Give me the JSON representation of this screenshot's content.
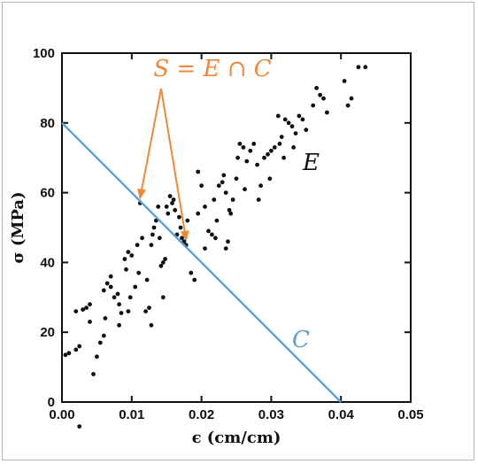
{
  "chart_data": {
    "type": "scatter",
    "xlabel": "ϵ (cm/cm)",
    "ylabel": "σ (MPa)",
    "xlim": [
      0,
      0.05
    ],
    "ylim": [
      0,
      100
    ],
    "xticks": [
      "0.00",
      "0.01",
      "0.02",
      "0.03",
      "0.04",
      "0.05"
    ],
    "yticks": [
      "0",
      "20",
      "40",
      "60",
      "80",
      "100"
    ],
    "grid": false,
    "points": [
      [
        0.0005,
        13.5
      ],
      [
        0.001,
        14
      ],
      [
        0.002,
        15
      ],
      [
        0.0025,
        16
      ],
      [
        0.002,
        26
      ],
      [
        0.003,
        26.5
      ],
      [
        0.0035,
        27
      ],
      [
        0.004,
        28
      ],
      [
        0.004,
        23
      ],
      [
        0.0045,
        8
      ],
      [
        0.005,
        13
      ],
      [
        0.0055,
        17
      ],
      [
        0.006,
        19
      ],
      [
        0.006,
        32
      ],
      [
        0.0065,
        34
      ],
      [
        0.007,
        36
      ],
      [
        0.007,
        33
      ],
      [
        0.0075,
        30
      ],
      [
        0.008,
        31
      ],
      [
        0.0082,
        28
      ],
      [
        0.0085,
        25.5
      ],
      [
        0.009,
        41
      ],
      [
        0.0095,
        43
      ],
      [
        0.01,
        42
      ],
      [
        0.0098,
        30
      ],
      [
        0.0105,
        33
      ],
      [
        0.011,
        37
      ],
      [
        0.0112,
        57
      ],
      [
        0.012,
        26
      ],
      [
        0.0125,
        27
      ],
      [
        0.0128,
        45
      ],
      [
        0.013,
        48
      ],
      [
        0.0132,
        50
      ],
      [
        0.0135,
        52
      ],
      [
        0.014,
        47
      ],
      [
        0.0142,
        39
      ],
      [
        0.0145,
        40
      ],
      [
        0.0148,
        41
      ],
      [
        0.015,
        56
      ],
      [
        0.0152,
        54
      ],
      [
        0.0155,
        59
      ],
      [
        0.0158,
        57
      ],
      [
        0.016,
        58
      ],
      [
        0.0162,
        55
      ],
      [
        0.0165,
        48
      ],
      [
        0.0168,
        53
      ],
      [
        0.017,
        50
      ],
      [
        0.0172,
        47
      ],
      [
        0.0175,
        46
      ],
      [
        0.0178,
        45
      ],
      [
        0.018,
        52
      ],
      [
        0.0185,
        37
      ],
      [
        0.019,
        35
      ],
      [
        0.0195,
        66
      ],
      [
        0.02,
        62
      ],
      [
        0.0205,
        56
      ],
      [
        0.021,
        49
      ],
      [
        0.0215,
        48
      ],
      [
        0.022,
        47
      ],
      [
        0.0222,
        52
      ],
      [
        0.0225,
        62
      ],
      [
        0.023,
        63
      ],
      [
        0.0232,
        65
      ],
      [
        0.0235,
        60
      ],
      [
        0.024,
        55
      ],
      [
        0.0242,
        54
      ],
      [
        0.0245,
        58
      ],
      [
        0.025,
        64
      ],
      [
        0.0252,
        70
      ],
      [
        0.0255,
        74
      ],
      [
        0.026,
        73
      ],
      [
        0.0265,
        69
      ],
      [
        0.027,
        72
      ],
      [
        0.0275,
        74
      ],
      [
        0.028,
        68
      ],
      [
        0.0285,
        62
      ],
      [
        0.029,
        70
      ],
      [
        0.0295,
        71
      ],
      [
        0.03,
        72
      ],
      [
        0.0305,
        73
      ],
      [
        0.031,
        82
      ],
      [
        0.0312,
        74
      ],
      [
        0.0315,
        76
      ],
      [
        0.032,
        81
      ],
      [
        0.0325,
        80
      ],
      [
        0.033,
        79
      ],
      [
        0.0335,
        77
      ],
      [
        0.034,
        82
      ],
      [
        0.0345,
        81
      ],
      [
        0.035,
        78
      ],
      [
        0.036,
        85
      ],
      [
        0.0365,
        90
      ],
      [
        0.037,
        88
      ],
      [
        0.0375,
        87
      ],
      [
        0.038,
        83
      ],
      [
        0.0405,
        92
      ],
      [
        0.041,
        85
      ],
      [
        0.0415,
        87
      ],
      [
        0.0425,
        96
      ],
      [
        0.0435,
        96
      ],
      [
        0.0205,
        44
      ],
      [
        0.0195,
        54
      ],
      [
        0.0238,
        46
      ],
      [
        0.0218,
        58
      ],
      [
        0.0138,
        56
      ],
      [
        0.0115,
        47
      ],
      [
        0.0108,
        45
      ],
      [
        0.0092,
        38
      ],
      [
        0.0122,
        35
      ],
      [
        0.0095,
        26
      ],
      [
        0.0062,
        24
      ],
      [
        0.0082,
        22
      ],
      [
        0.0235,
        44
      ],
      [
        0.0262,
        61
      ],
      [
        0.0282,
        58
      ],
      [
        0.0298,
        64
      ],
      [
        0.0318,
        70
      ],
      [
        0.0332,
        73
      ],
      [
        0.0128,
        22
      ],
      [
        0.0145,
        30
      ],
      [
        0.0025,
        -7
      ]
    ],
    "line": {
      "x": [
        0,
        0.04
      ],
      "y": [
        80,
        0
      ],
      "label": "C",
      "color": "#5aa0d8"
    },
    "annotations": {
      "cloud_label": "E",
      "intersection_label": "S = E ∩ C",
      "arrow_color": "#f0883a",
      "arrow_targets": [
        [
          0.0112,
          57
        ],
        [
          0.0178,
          45
        ]
      ]
    }
  }
}
